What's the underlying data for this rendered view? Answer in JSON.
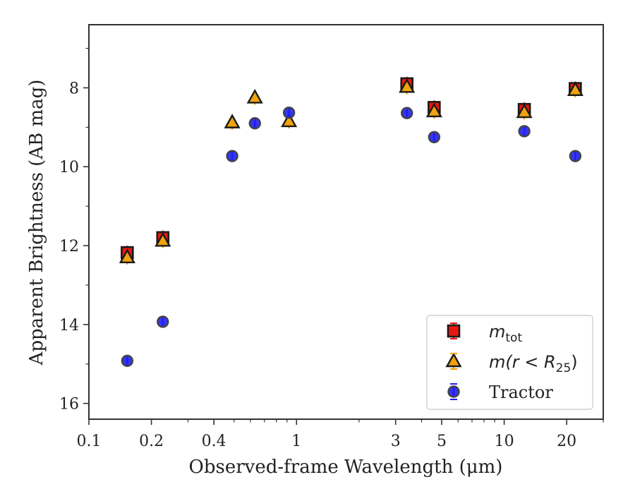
{
  "chart_data": {
    "type": "scatter",
    "xlabel": "Observed-frame Wavelength (μm)",
    "ylabel": "Apparent Brightness (AB mag)",
    "x_scale": "log",
    "y_inverted": true,
    "xlim": [
      0.1,
      30
    ],
    "ylim": [
      16.4,
      6.4
    ],
    "x_ticks": [
      0.1,
      0.2,
      0.4,
      1,
      3,
      5,
      10,
      20
    ],
    "x_tick_labels": [
      "0.1",
      "0.2",
      "0.4",
      "1",
      "3",
      "5",
      "10",
      "20"
    ],
    "y_ticks": [
      8,
      10,
      12,
      14,
      16
    ],
    "y_tick_labels": [
      "8",
      "10",
      "12",
      "14",
      "16"
    ],
    "grid": false,
    "legend_position": "bottom-right",
    "series": [
      {
        "name": "m_tot",
        "name_display": {
          "base": "m",
          "sub": "tot"
        },
        "marker": "square",
        "color": "#e8170f",
        "x": [
          0.153,
          0.227,
          3.4,
          4.6,
          12.5,
          22.0
        ],
        "y": [
          12.18,
          11.8,
          7.9,
          8.5,
          8.55,
          8.02
        ]
      },
      {
        "name": "m(r < R25)",
        "name_display": {
          "base": "m(r < R",
          "sub": "25",
          "tail": ")"
        },
        "marker": "triangle",
        "color": "#f2a20c",
        "x": [
          0.153,
          0.227,
          0.49,
          0.63,
          0.92,
          3.4,
          4.6,
          12.5,
          22.0
        ],
        "y": [
          12.3,
          11.88,
          8.88,
          8.25,
          8.85,
          7.98,
          8.6,
          8.62,
          8.06
        ]
      },
      {
        "name": "Tractor",
        "marker": "circle",
        "color": "#1f1ff0",
        "x": [
          0.153,
          0.227,
          0.49,
          0.63,
          0.92,
          3.4,
          4.6,
          12.5,
          22.0
        ],
        "y": [
          14.92,
          13.93,
          9.73,
          8.9,
          8.63,
          8.64,
          9.25,
          9.1,
          9.73
        ]
      }
    ]
  }
}
